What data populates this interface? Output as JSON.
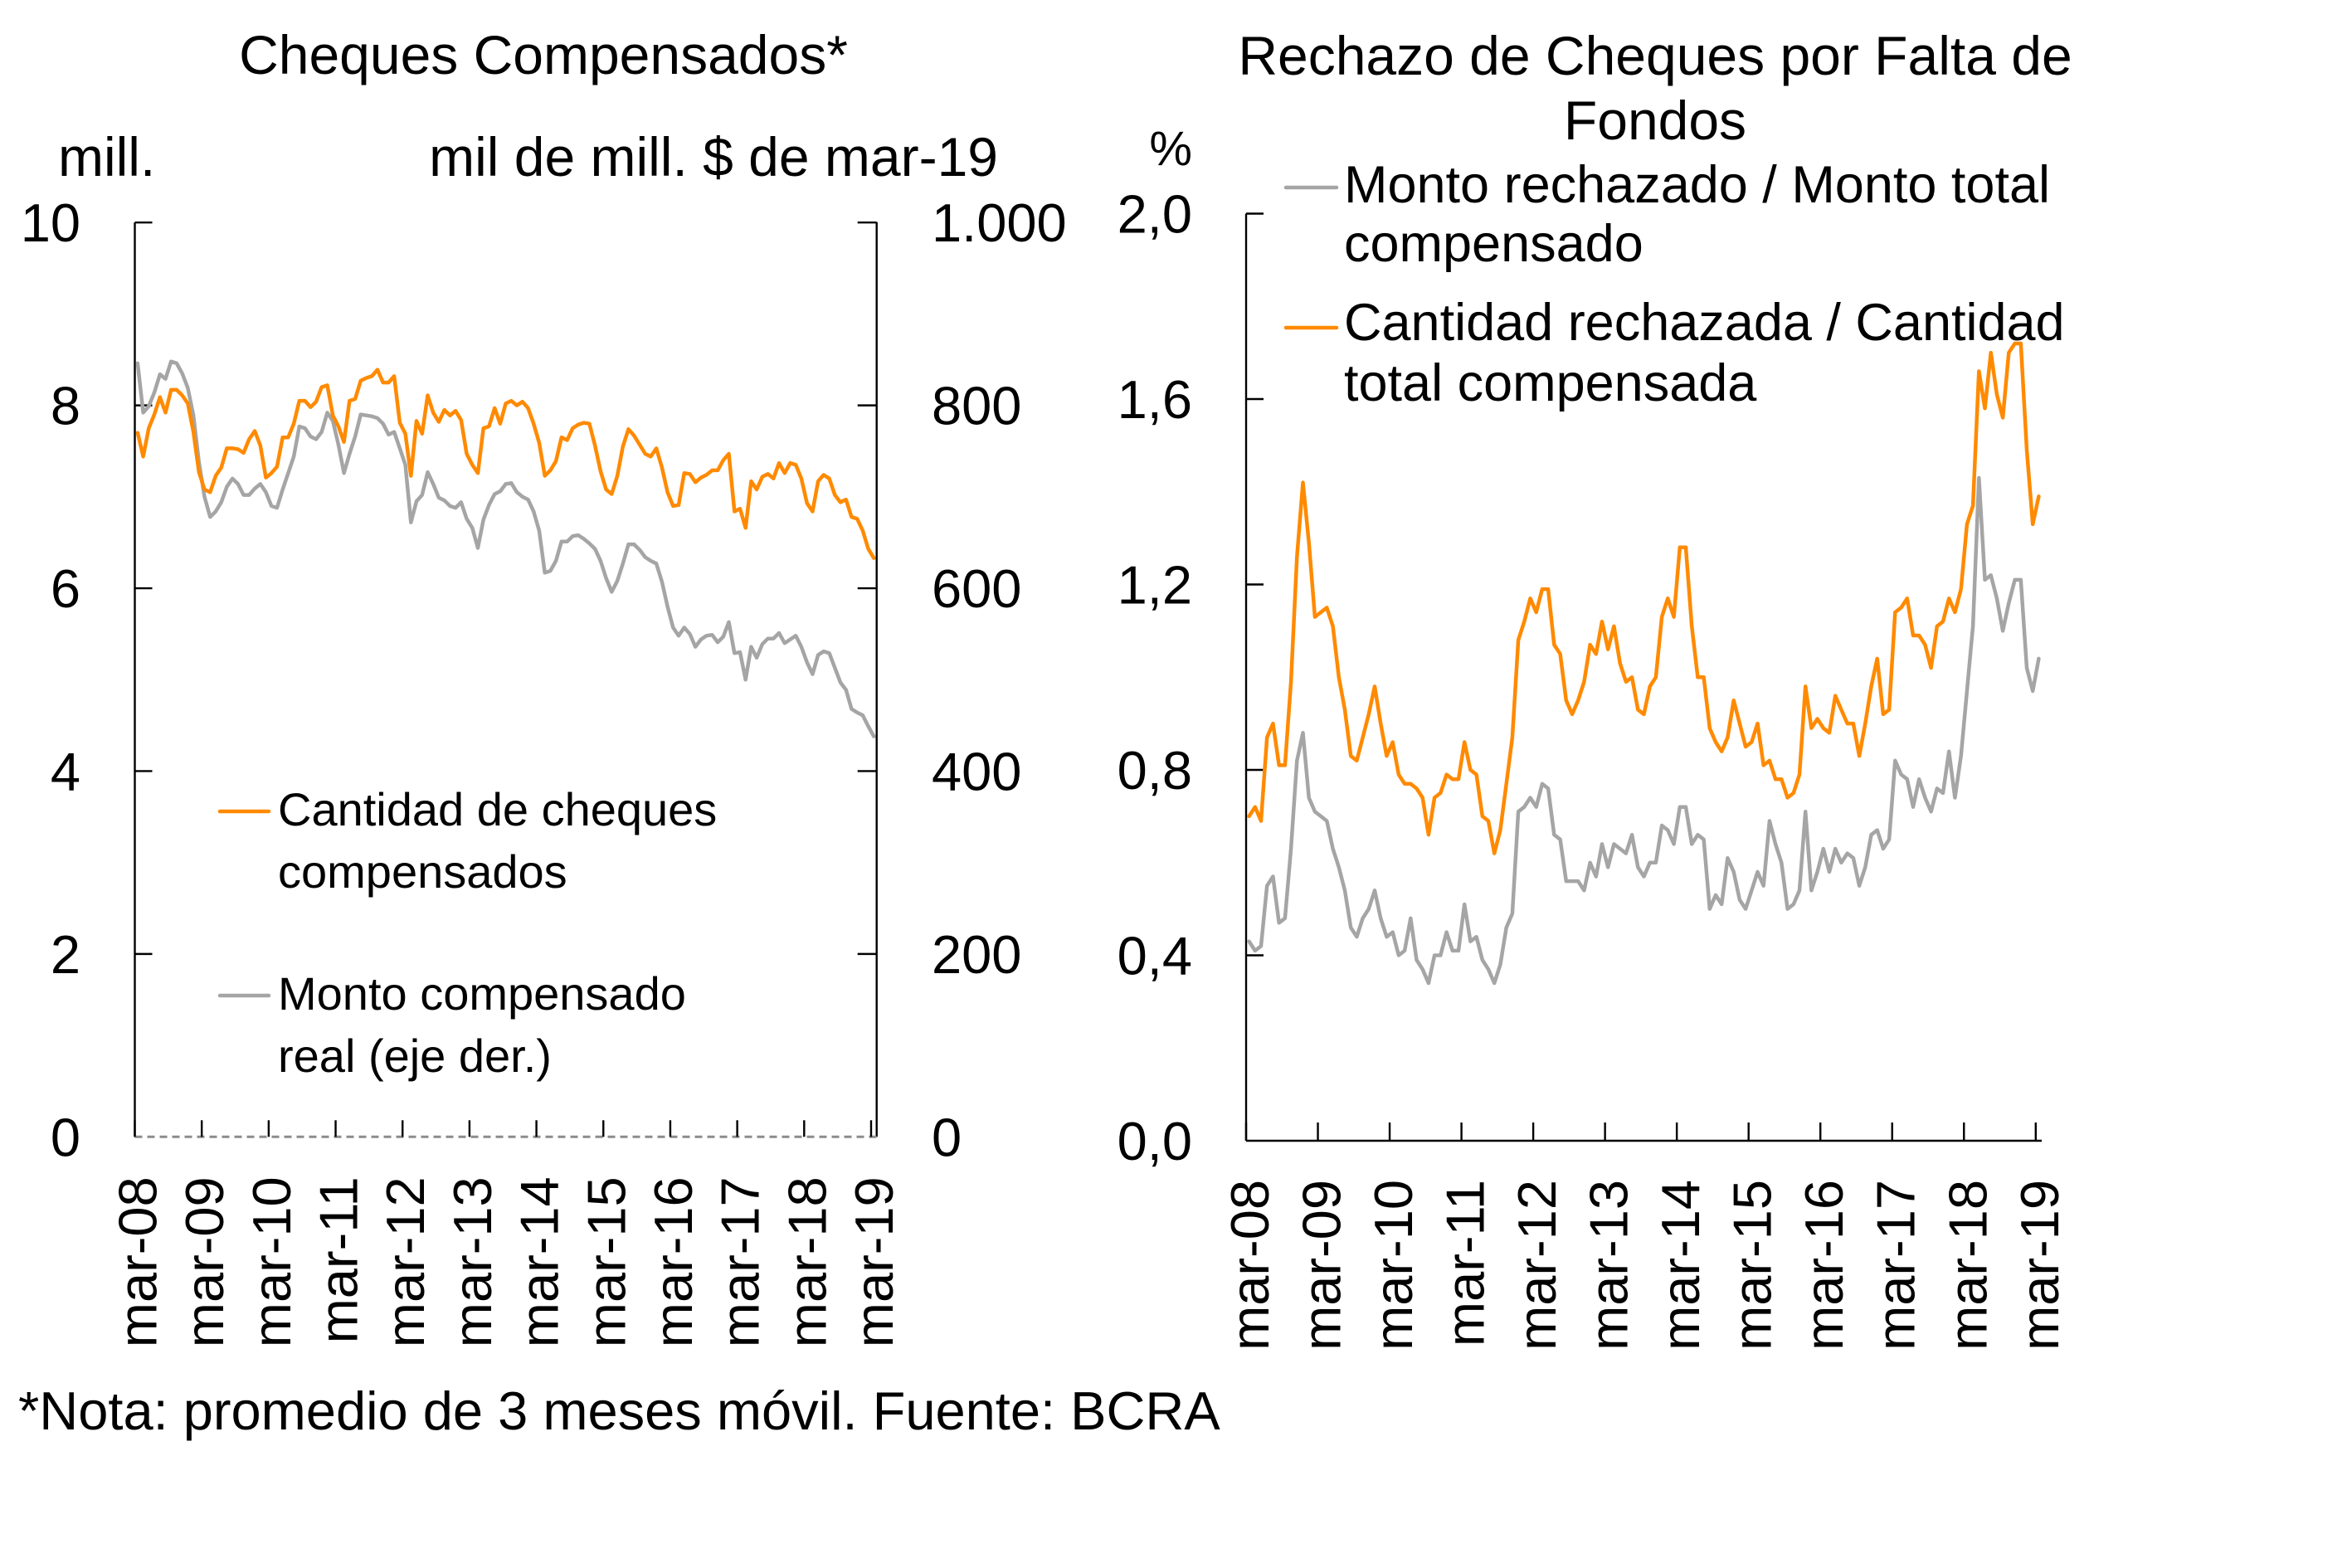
{
  "footnote": "*Nota: promedio de 3 meses móvil. Fuente: BCRA",
  "chart_data": [
    {
      "type": "line",
      "title": "Cheques Compensados*",
      "y_left_label": "mill.",
      "y_right_label": "mil de mill. $ de mar-19",
      "frequency": "monthly",
      "x_range": [
        "mar-08",
        "mar-19"
      ],
      "x_tick_labels": [
        "mar-08",
        "mar-09",
        "mar-10",
        "mar-11",
        "mar-12",
        "mar-13",
        "mar-14",
        "mar-15",
        "mar-16",
        "mar-17",
        "mar-18",
        "mar-19"
      ],
      "y_left": {
        "range": [
          0,
          10
        ],
        "ticks": [
          0,
          2,
          4,
          6,
          8,
          10
        ],
        "tick_labels": [
          "0",
          "2",
          "4",
          "6",
          "8",
          "10"
        ]
      },
      "y_right": {
        "range": [
          0,
          1000
        ],
        "ticks": [
          0,
          200,
          400,
          600,
          800,
          1000
        ],
        "tick_labels": [
          "0",
          "200",
          "400",
          "600",
          "800",
          "1.000"
        ]
      },
      "grid": false,
      "legend_position": "bottom-left inside plot",
      "series": [
        {
          "name": "Cantidad de cheques compensados",
          "legend_lines": [
            "Cantidad de cheques",
            "compensados"
          ],
          "axis": "left",
          "color": "#FF8A00",
          "values": [
            7.7,
            7.44,
            7.75,
            7.9,
            8.09,
            7.92,
            8.17,
            8.17,
            8.11,
            8.02,
            7.71,
            7.27,
            7.08,
            7.05,
            7.23,
            7.32,
            7.53,
            7.53,
            7.52,
            7.48,
            7.63,
            7.72,
            7.56,
            7.21,
            7.26,
            7.33,
            7.65,
            7.65,
            7.8,
            8.05,
            8.05,
            7.98,
            8.04,
            8.2,
            8.22,
            7.89,
            7.77,
            7.6,
            8.05,
            8.07,
            8.27,
            8.3,
            8.32,
            8.39,
            8.25,
            8.25,
            8.32,
            7.81,
            7.69,
            7.23,
            7.83,
            7.69,
            8.11,
            7.92,
            7.82,
            7.95,
            7.89,
            7.94,
            7.84,
            7.47,
            7.35,
            7.26,
            7.75,
            7.77,
            7.97,
            7.8,
            8.02,
            8.05,
            8.0,
            8.04,
            7.97,
            7.8,
            7.59,
            7.23,
            7.29,
            7.39,
            7.65,
            7.62,
            7.75,
            7.79,
            7.81,
            7.8,
            7.56,
            7.28,
            7.08,
            7.03,
            7.23,
            7.55,
            7.74,
            7.67,
            7.57,
            7.47,
            7.44,
            7.53,
            7.32,
            7.05,
            6.9,
            6.91,
            7.26,
            7.25,
            7.16,
            7.21,
            7.24,
            7.29,
            7.29,
            7.4,
            7.47,
            6.84,
            6.87,
            6.66,
            7.17,
            7.08,
            7.22,
            7.25,
            7.2,
            7.37,
            7.26,
            7.37,
            7.35,
            7.2,
            6.93,
            6.84,
            7.17,
            7.24,
            7.2,
            7.02,
            6.94,
            6.97,
            6.78,
            6.76,
            6.63,
            6.43,
            6.33
          ]
        },
        {
          "name": "Monto compensado real (eje der.)",
          "legend_lines": [
            "Monto compensado",
            "real (eje der.)"
          ],
          "axis": "right",
          "color": "#A5A5A5",
          "values": [
            846,
            792,
            799,
            814,
            834,
            829,
            848,
            846,
            835,
            819,
            789,
            738,
            700,
            678,
            684,
            694,
            711,
            720,
            714,
            702,
            702,
            709,
            714,
            705,
            690,
            688,
            708,
            726,
            744,
            777,
            775,
            766,
            763,
            771,
            792,
            783,
            757,
            726,
            747,
            766,
            790,
            789,
            788,
            786,
            780,
            768,
            771,
            753,
            735,
            672,
            695,
            702,
            727,
            714,
            699,
            696,
            690,
            688,
            694,
            676,
            666,
            644,
            675,
            691,
            703,
            706,
            714,
            715,
            705,
            700,
            697,
            684,
            663,
            617,
            619,
            630,
            651,
            651,
            657,
            658,
            654,
            649,
            643,
            630,
            611,
            596,
            608,
            627,
            648,
            648,
            642,
            634,
            630,
            627,
            607,
            580,
            557,
            548,
            557,
            550,
            536,
            544,
            548,
            549,
            541,
            547,
            563,
            529,
            530,
            500,
            536,
            524,
            539,
            545,
            545,
            551,
            540,
            544,
            548,
            536,
            519,
            506,
            527,
            531,
            529,
            513,
            497,
            489,
            468,
            464,
            461,
            449,
            438
          ]
        }
      ]
    },
    {
      "type": "line",
      "title": "Rechazo de Cheques por Falta de Fondos",
      "title_lines": [
        "Rechazo de Cheques por Falta de",
        "Fondos"
      ],
      "y_label": "%",
      "frequency": "monthly",
      "x_range": [
        "mar-08",
        "mar-19"
      ],
      "x_tick_labels": [
        "mar-08",
        "mar-09",
        "mar-10",
        "mar-11",
        "mar-12",
        "mar-13",
        "mar-14",
        "mar-15",
        "mar-16",
        "mar-17",
        "mar-18",
        "mar-19"
      ],
      "y": {
        "range": [
          0,
          2.0
        ],
        "ticks": [
          0,
          0.4,
          0.8,
          1.2,
          1.6,
          2.0
        ],
        "tick_labels": [
          "0,0",
          "0,4",
          "0,8",
          "1,2",
          "1,6",
          "2,0"
        ]
      },
      "grid": false,
      "legend_position": "top-left inside plot",
      "series": [
        {
          "name": "Monto rechazado / Monto total compensado",
          "legend_lines": [
            "Monto rechazado / Monto total",
            "compensado"
          ],
          "color": "#A5A5A5",
          "values": [
            0.43,
            0.41,
            0.42,
            0.55,
            0.57,
            0.47,
            0.48,
            0.63,
            0.82,
            0.88,
            0.74,
            0.71,
            0.7,
            0.69,
            0.63,
            0.59,
            0.54,
            0.46,
            0.44,
            0.48,
            0.5,
            0.54,
            0.48,
            0.44,
            0.45,
            0.4,
            0.41,
            0.48,
            0.39,
            0.37,
            0.34,
            0.4,
            0.4,
            0.45,
            0.41,
            0.41,
            0.51,
            0.43,
            0.44,
            0.39,
            0.37,
            0.34,
            0.38,
            0.46,
            0.49,
            0.71,
            0.72,
            0.74,
            0.72,
            0.77,
            0.76,
            0.66,
            0.65,
            0.56,
            0.56,
            0.56,
            0.54,
            0.6,
            0.57,
            0.64,
            0.59,
            0.64,
            0.63,
            0.62,
            0.66,
            0.59,
            0.57,
            0.6,
            0.6,
            0.68,
            0.67,
            0.64,
            0.72,
            0.72,
            0.64,
            0.66,
            0.65,
            0.5,
            0.53,
            0.51,
            0.61,
            0.58,
            0.52,
            0.5,
            0.54,
            0.58,
            0.55,
            0.69,
            0.64,
            0.6,
            0.5,
            0.51,
            0.54,
            0.71,
            0.54,
            0.58,
            0.63,
            0.58,
            0.63,
            0.6,
            0.62,
            0.61,
            0.55,
            0.59,
            0.66,
            0.67,
            0.63,
            0.65,
            0.82,
            0.79,
            0.78,
            0.72,
            0.78,
            0.74,
            0.71,
            0.76,
            0.75,
            0.84,
            0.74,
            0.83,
            0.97,
            1.11,
            1.43,
            1.21,
            1.22,
            1.17,
            1.1,
            1.16,
            1.21,
            1.21,
            1.02,
            0.97,
            1.04
          ]
        },
        {
          "name": "Cantidad rechazada / Cantidad total compensada",
          "legend_lines": [
            "Cantidad rechazada / Cantidad",
            "total compensada"
          ],
          "color": "#FF8A00",
          "values": [
            0.7,
            0.72,
            0.69,
            0.87,
            0.9,
            0.81,
            0.81,
            0.99,
            1.26,
            1.42,
            1.29,
            1.13,
            1.14,
            1.15,
            1.11,
            1.0,
            0.93,
            0.83,
            0.82,
            0.87,
            0.92,
            0.98,
            0.9,
            0.83,
            0.86,
            0.79,
            0.77,
            0.77,
            0.76,
            0.74,
            0.66,
            0.74,
            0.75,
            0.79,
            0.78,
            0.78,
            0.86,
            0.8,
            0.79,
            0.7,
            0.69,
            0.62,
            0.67,
            0.77,
            0.87,
            1.08,
            1.12,
            1.17,
            1.14,
            1.19,
            1.19,
            1.07,
            1.05,
            0.95,
            0.92,
            0.95,
            0.99,
            1.07,
            1.05,
            1.12,
            1.06,
            1.11,
            1.03,
            0.99,
            1.0,
            0.93,
            0.92,
            0.98,
            1.0,
            1.13,
            1.17,
            1.13,
            1.28,
            1.28,
            1.11,
            1.0,
            1.0,
            0.89,
            0.86,
            0.84,
            0.87,
            0.95,
            0.9,
            0.85,
            0.86,
            0.9,
            0.81,
            0.82,
            0.78,
            0.78,
            0.74,
            0.75,
            0.79,
            0.98,
            0.89,
            0.91,
            0.89,
            0.88,
            0.96,
            0.93,
            0.9,
            0.9,
            0.83,
            0.9,
            0.98,
            1.04,
            0.92,
            0.93,
            1.14,
            1.15,
            1.17,
            1.09,
            1.09,
            1.07,
            1.02,
            1.11,
            1.12,
            1.17,
            1.14,
            1.19,
            1.33,
            1.37,
            1.66,
            1.58,
            1.7,
            1.61,
            1.56,
            1.7,
            1.72,
            1.72,
            1.49,
            1.33,
            1.39
          ]
        }
      ]
    }
  ]
}
